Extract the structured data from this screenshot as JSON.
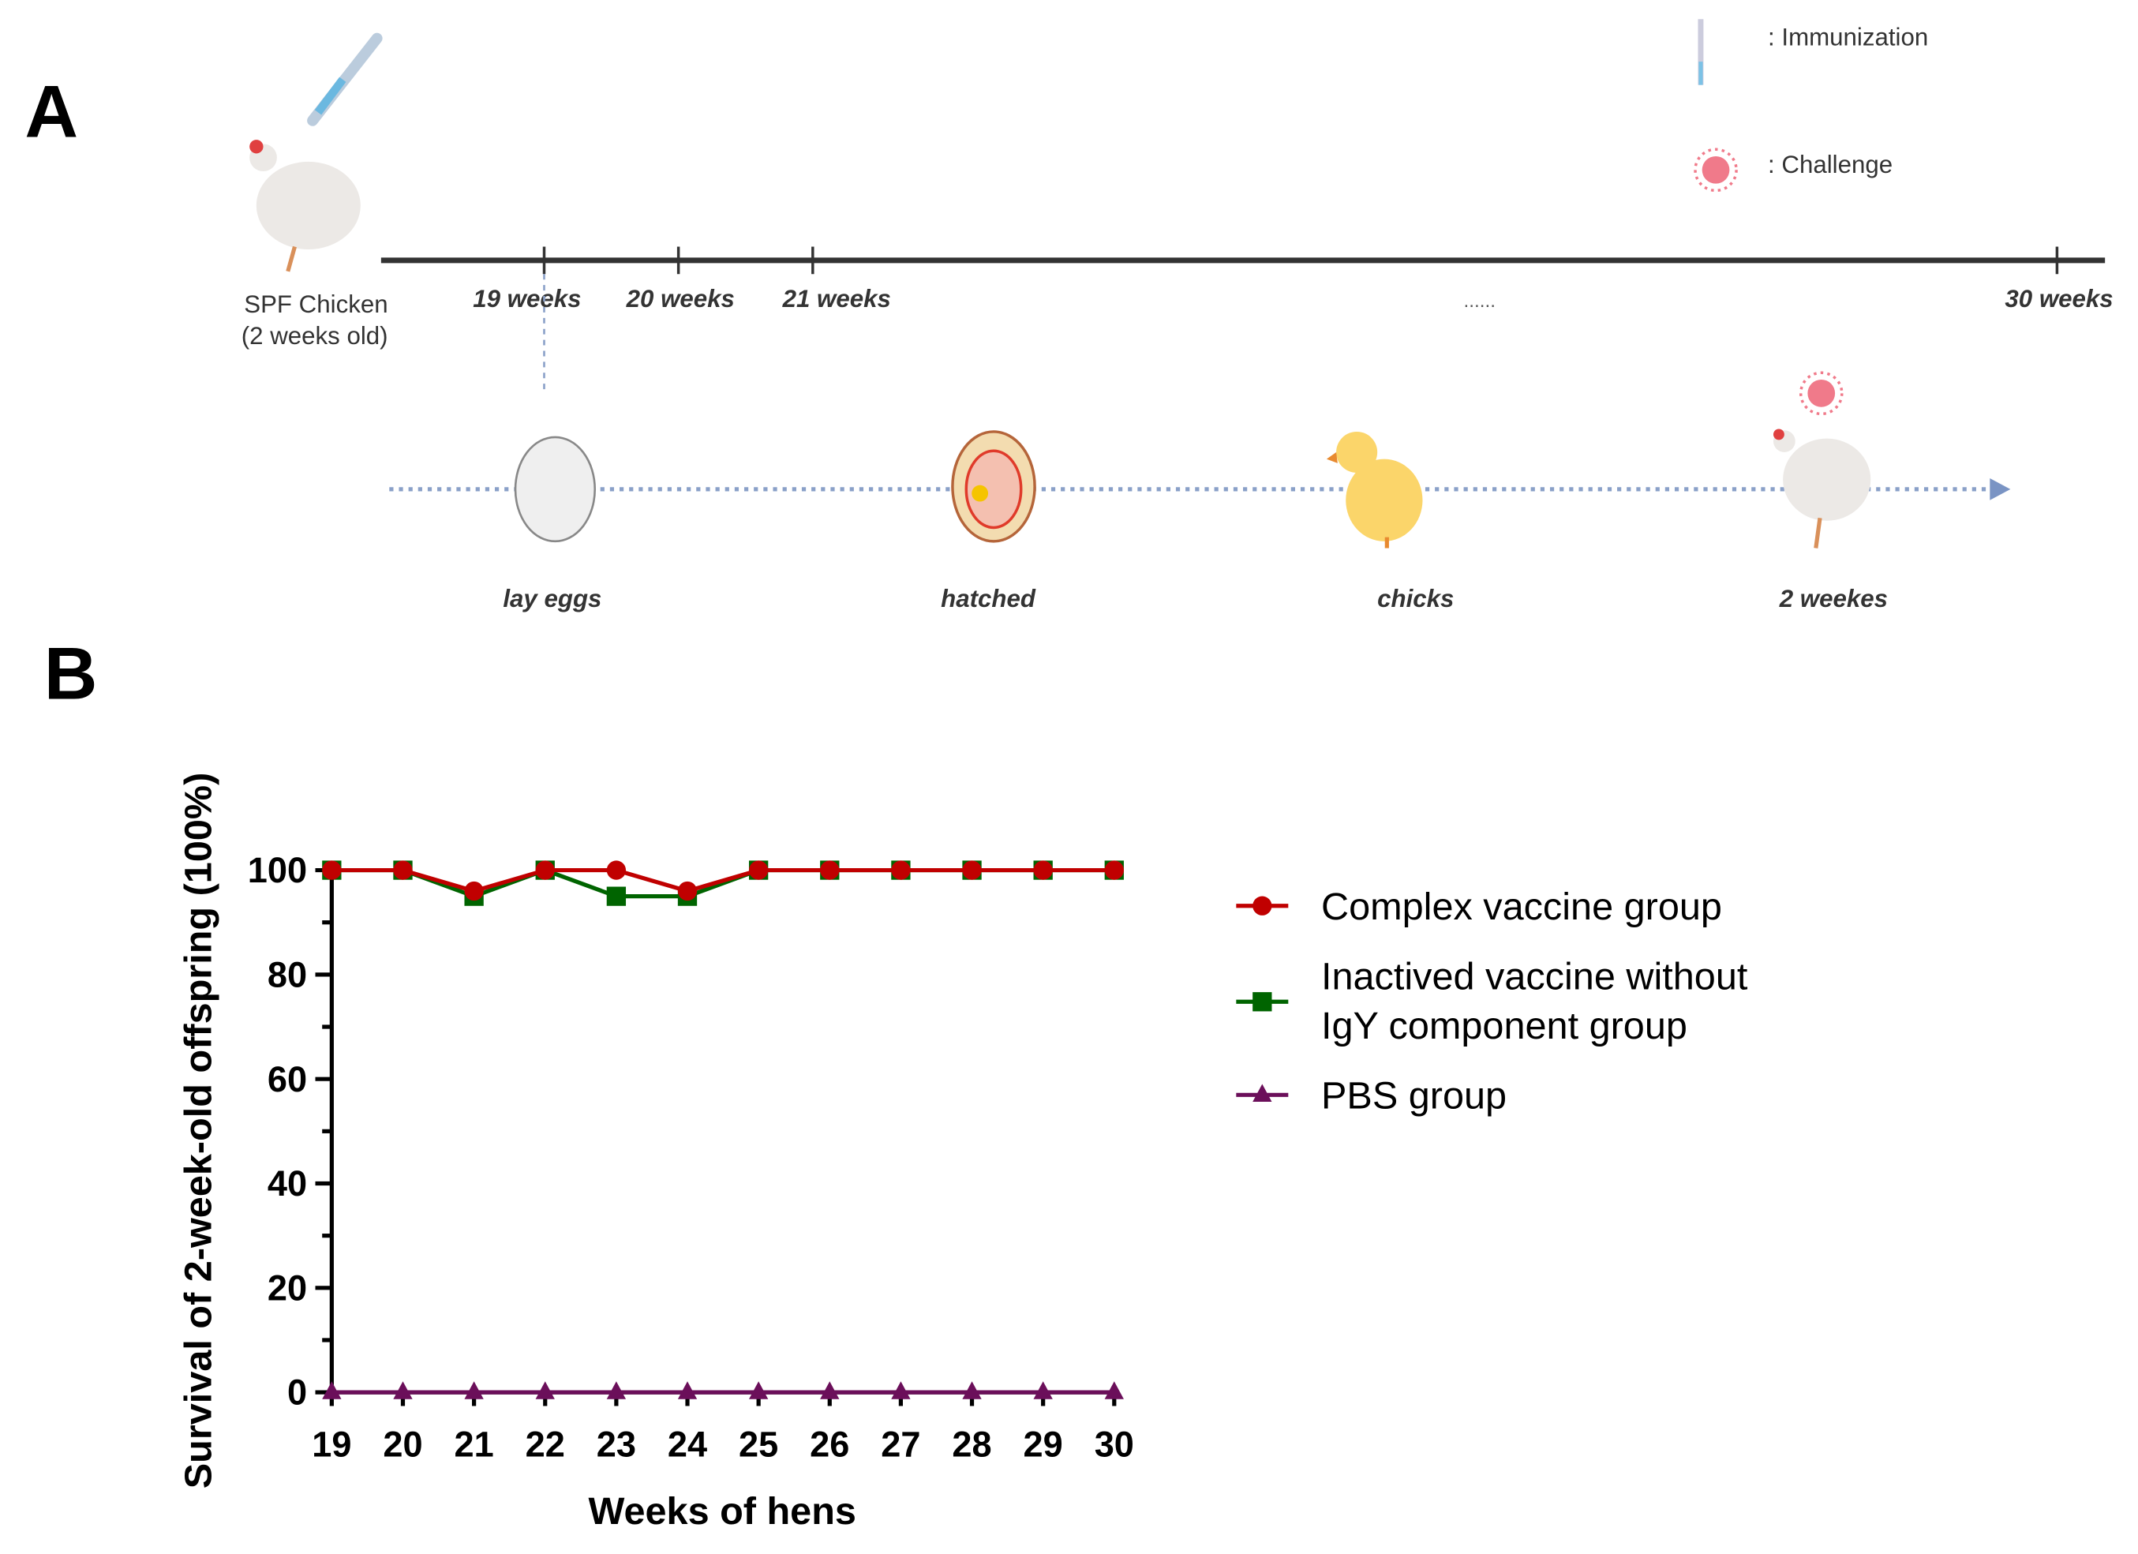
{
  "panel_a": {
    "label": "A",
    "legend": {
      "immunization": ": Immunization",
      "challenge": ": Challenge"
    },
    "start_label_line1": "SPF Chicken",
    "start_label_line2": "(2 weeks old)",
    "timeline_ticks": [
      "19 weeks",
      "20 weeks",
      "21 weeks",
      "30 weeks"
    ],
    "ellipsis": "......",
    "stages": [
      "lay eggs",
      "hatched",
      "chicks",
      "2 weekes"
    ],
    "icons": [
      "syringe-icon",
      "hen-icon",
      "egg-icon",
      "embryo-icon",
      "chick-icon",
      "virus-icon"
    ]
  },
  "panel_b": {
    "label": "B"
  },
  "chart_data": {
    "type": "line",
    "title": "",
    "xlabel": "Weeks of hens",
    "ylabel": "Survival of 2-week-old offspring (100%)",
    "x": [
      19,
      20,
      21,
      22,
      23,
      24,
      25,
      26,
      27,
      28,
      29,
      30
    ],
    "xlim": [
      19,
      30
    ],
    "ylim": [
      0,
      100
    ],
    "yticks": [
      0,
      20,
      40,
      60,
      80,
      100
    ],
    "grid": false,
    "legend_position": "right",
    "series": [
      {
        "name": "Complex vaccine group",
        "color": "#c00000",
        "marker": "circle",
        "values": [
          100,
          100,
          96,
          100,
          100,
          96,
          100,
          100,
          100,
          100,
          100,
          100
        ]
      },
      {
        "name": "Inactived vaccine without IgY component group",
        "name_line1": "Inactived vaccine without",
        "name_line2": "IgY component group",
        "color": "#006400",
        "marker": "square",
        "values": [
          100,
          100,
          95,
          100,
          95,
          95,
          100,
          100,
          100,
          100,
          100,
          100
        ]
      },
      {
        "name": "PBS group",
        "color": "#6b0f5a",
        "marker": "triangle",
        "values": [
          0,
          0,
          0,
          0,
          0,
          0,
          0,
          0,
          0,
          0,
          0,
          0
        ]
      }
    ]
  }
}
